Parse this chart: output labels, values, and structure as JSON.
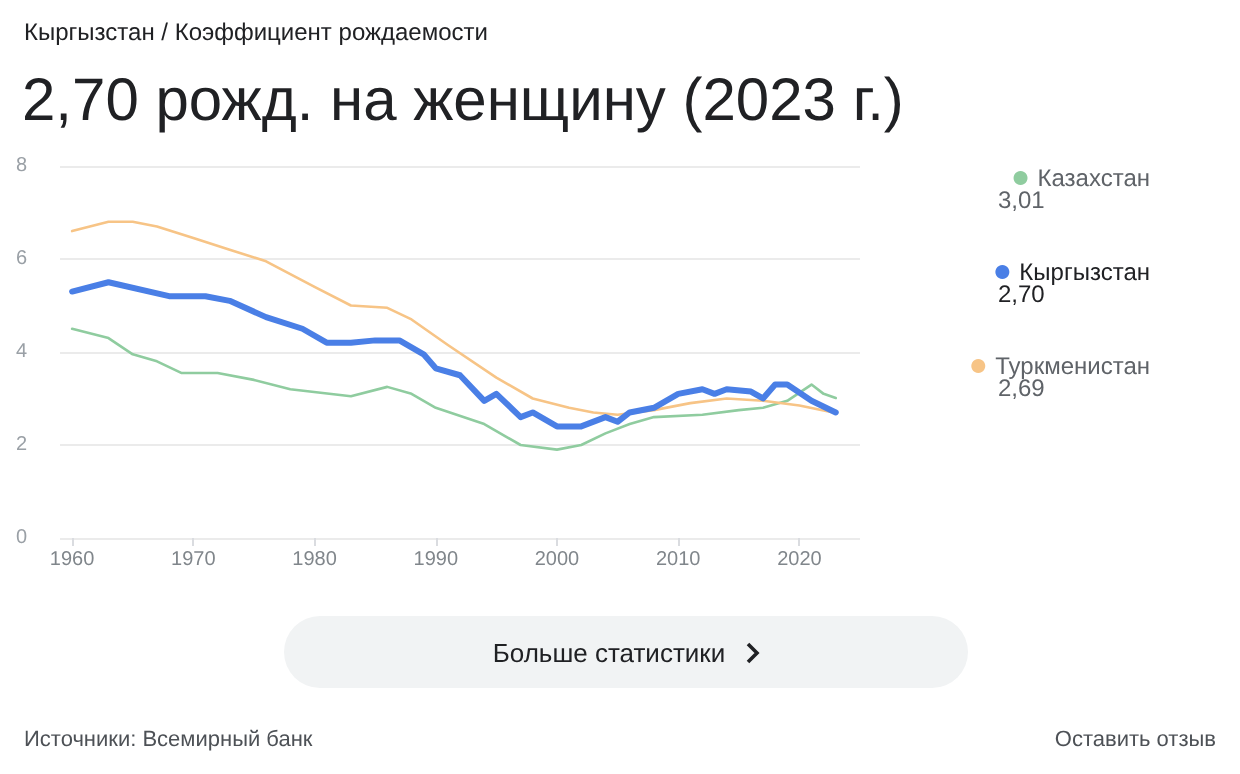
{
  "chart_data": {
    "type": "line",
    "subtitle": "Кыргызстан / Коэффициент рождаемости",
    "title": "2,70 рожд. на женщину (2023 г.)",
    "series": [
      {
        "name": "Казахстан",
        "color": "#8fcc9f",
        "x": [
          1960,
          1963,
          1965,
          1967,
          1969,
          1972,
          1975,
          1978,
          1983,
          1986,
          1988,
          1990,
          1994,
          1997,
          2000,
          2002,
          2004,
          2006,
          2008,
          2012,
          2015,
          2017,
          2019,
          2021,
          2022,
          2023
        ],
        "values": [
          4.5,
          4.3,
          3.95,
          3.8,
          3.55,
          3.55,
          3.4,
          3.2,
          3.05,
          3.25,
          3.1,
          2.8,
          2.45,
          2.0,
          1.9,
          2.0,
          2.25,
          2.45,
          2.6,
          2.65,
          2.75,
          2.8,
          2.95,
          3.3,
          3.1,
          3.01
        ]
      },
      {
        "name": "Кыргызстан",
        "color": "#4a7fe6",
        "x": [
          1960,
          1963,
          1968,
          1971,
          1973,
          1976,
          1979,
          1981,
          1983,
          1985,
          1987,
          1989,
          1990,
          1992,
          1994,
          1995,
          1997,
          1998,
          2000,
          2002,
          2004,
          2005,
          2006,
          2008,
          2010,
          2012,
          2013,
          2014,
          2016,
          2017,
          2018,
          2019,
          2021,
          2023
        ],
        "values": [
          5.3,
          5.5,
          5.2,
          5.2,
          5.1,
          4.75,
          4.5,
          4.2,
          4.2,
          4.25,
          4.25,
          3.95,
          3.65,
          3.5,
          2.95,
          3.1,
          2.6,
          2.7,
          2.4,
          2.4,
          2.6,
          2.5,
          2.7,
          2.8,
          3.1,
          3.2,
          3.1,
          3.2,
          3.15,
          3.0,
          3.3,
          3.3,
          2.95,
          2.7
        ]
      },
      {
        "name": "Туркменистан",
        "color": "#f7c486",
        "x": [
          1960,
          1963,
          1965,
          1967,
          1970,
          1973,
          1976,
          1980,
          1983,
          1986,
          1988,
          1991,
          1995,
          1998,
          2001,
          2003,
          2005,
          2008,
          2011,
          2014,
          2017,
          2020,
          2023
        ],
        "values": [
          6.6,
          6.8,
          6.8,
          6.7,
          6.45,
          6.2,
          5.95,
          5.4,
          5.0,
          4.95,
          4.7,
          4.15,
          3.45,
          3.0,
          2.8,
          2.7,
          2.65,
          2.75,
          2.9,
          3.0,
          2.95,
          2.85,
          2.69
        ]
      }
    ],
    "xlim": [
      1959,
      2025
    ],
    "xticks": [
      1960,
      1970,
      1980,
      1990,
      2000,
      2010,
      2020
    ],
    "ylim": [
      0,
      8
    ],
    "yticks": [
      0,
      2,
      4,
      6,
      8
    ],
    "grid": "y",
    "legend": "right",
    "annotations": [
      "3,01",
      "2,70",
      "2,69",
      "Больше статистики",
      "Источники: Всемирный банк",
      "Оставить отзыв"
    ]
  }
}
